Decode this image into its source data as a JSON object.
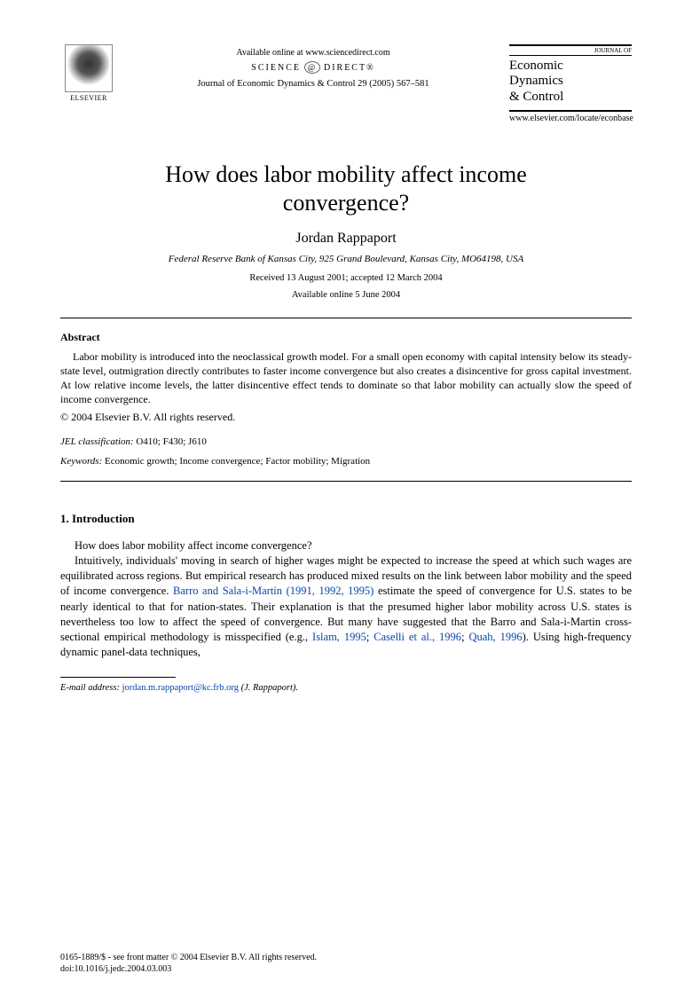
{
  "header": {
    "elsevier_label": "ELSEVIER",
    "available_online": "Available online at www.sciencedirect.com",
    "sd_left": "SCIENCE",
    "sd_right": "DIRECT®",
    "journal_ref": "Journal of Economic Dynamics & Control 29 (2005) 567–581",
    "journal_box_top": "JOURNAL OF",
    "journal_box_title_l1": "Economic",
    "journal_box_title_l2": "Dynamics",
    "journal_box_title_l3": "& Control",
    "locate_url": "www.elsevier.com/locate/econbase"
  },
  "title_l1": "How does labor mobility affect income",
  "title_l2": "convergence?",
  "author": "Jordan Rappaport",
  "affiliation": "Federal Reserve Bank of Kansas City, 925 Grand Boulevard, Kansas City, MO64198, USA",
  "dates": "Received 13 August 2001; accepted 12 March 2004",
  "online_date": "Available online 5 June 2004",
  "abstract_heading": "Abstract",
  "abstract_body": "Labor mobility is introduced into the neoclassical growth model. For a small open economy with capital intensity below its steady-state level, outmigration directly contributes to faster income convergence but also creates a disincentive for gross capital investment. At low relative income levels, the latter disincentive effect tends to dominate so that labor mobility can actually slow the speed of income convergence.",
  "copyright": "© 2004 Elsevier B.V. All rights reserved.",
  "jel_label": "JEL classification:",
  "jel_codes": " O410; F430; J610",
  "keywords_label": "Keywords:",
  "keywords": " Economic growth; Income convergence; Factor mobility; Migration",
  "section1_heading": "1. Introduction",
  "intro_p1": "How does labor mobility affect income convergence?",
  "intro_p2_a": "Intuitively, individuals' moving in search of higher wages might be expected to increase the speed at which such wages are equilibrated across regions. But empirical research has produced mixed results on the link between labor mobility and the speed of income convergence. ",
  "intro_cite1": "Barro and Sala-i-Martin (1991, 1992, 1995)",
  "intro_p2_b": " estimate the speed of convergence for U.S. states to be nearly identical to that for nation-states. Their explanation is that the presumed higher labor mobility across U.S. states is nevertheless too low to affect the speed of convergence. But many have suggested that the Barro and Sala-i-Martin cross-sectional empirical methodology is misspecified (e.g., ",
  "intro_cite2": "Islam, 1995",
  "intro_p2_c": "; ",
  "intro_cite3": "Caselli et al., 1996",
  "intro_p2_d": "; ",
  "intro_cite4": "Quah, 1996",
  "intro_p2_e": "). Using high-frequency dynamic panel-data techniques,",
  "email_label": "E-mail address:",
  "email": "jordan.m.rappaport@kc.frb.org",
  "email_tail": " (J. Rappaport).",
  "footer_issn": "0165-1889/$ - see front matter © 2004 Elsevier B.V. All rights reserved.",
  "footer_doi": "doi:10.1016/j.jedc.2004.03.003"
}
